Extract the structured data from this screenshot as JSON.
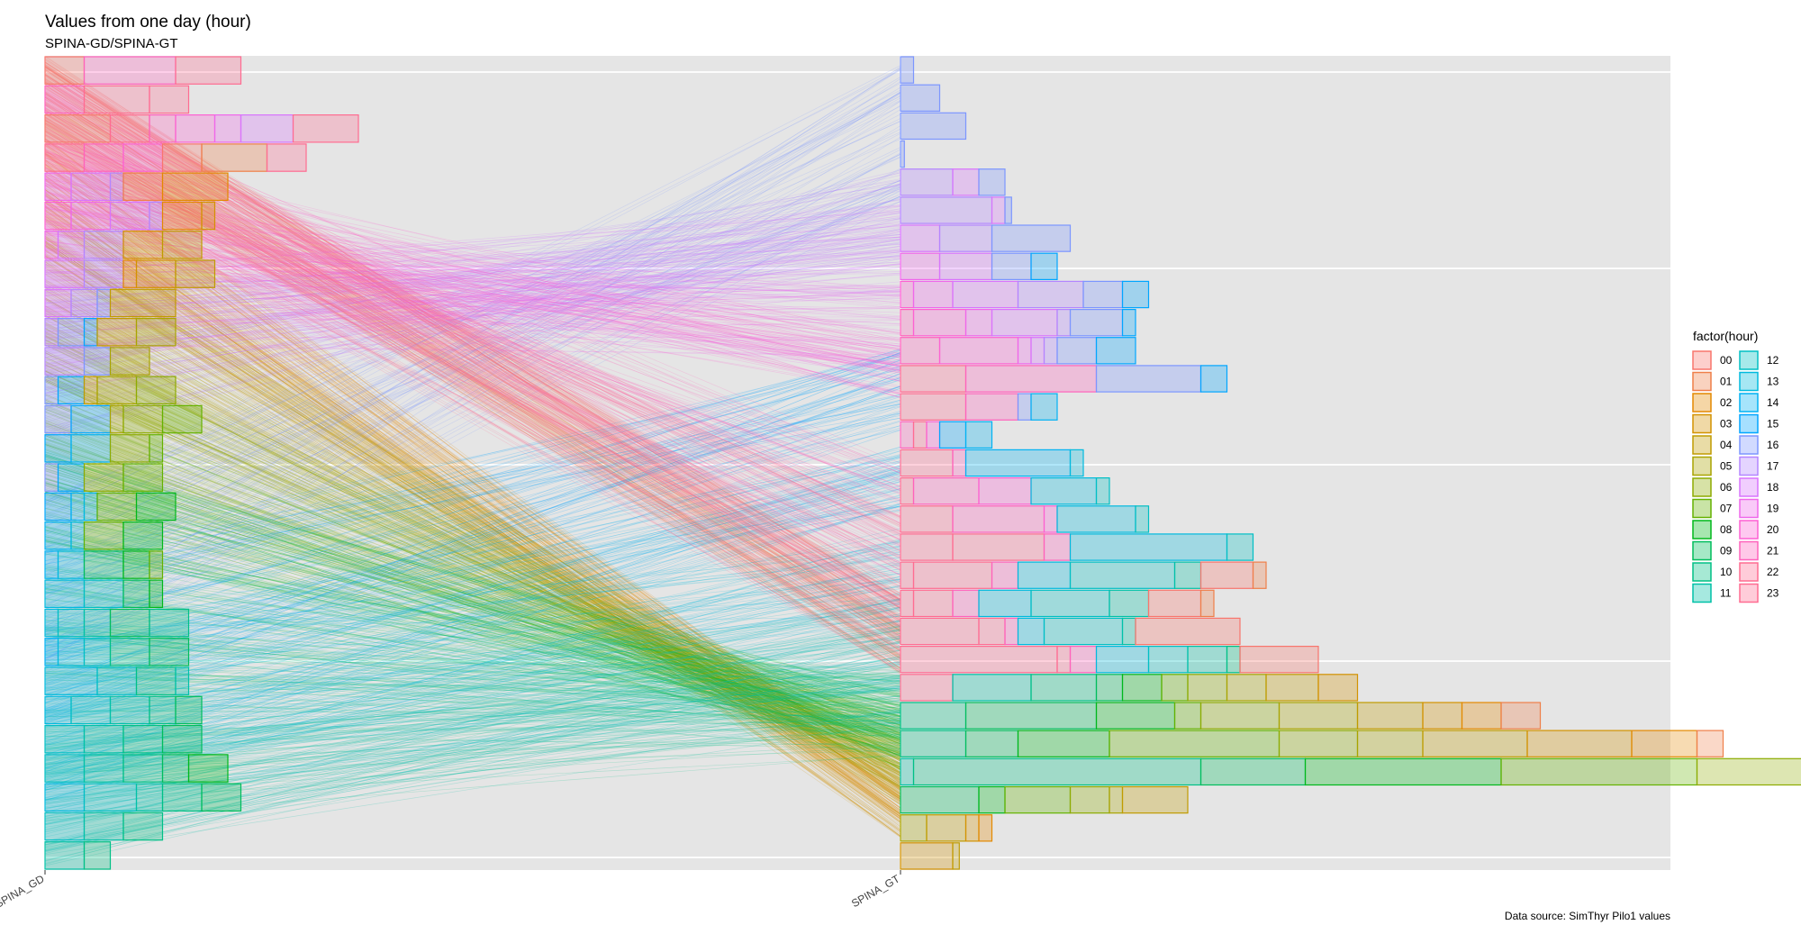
{
  "title": "Values from one day (hour)",
  "subtitle": "SPINA-GD/SPINA-GT",
  "caption": "Data source: SimThyr Pilo1 values",
  "chart_data": {
    "type": "parallel-coordinates-with-stacked-histograms",
    "x_categories": [
      "SPINA_GD",
      "SPINA_GT"
    ],
    "legend": {
      "title": "factor(hour)",
      "placement": "right",
      "entries": [
        "00",
        "01",
        "02",
        "03",
        "04",
        "05",
        "06",
        "07",
        "08",
        "09",
        "10",
        "11",
        "12",
        "13",
        "14",
        "15",
        "16",
        "17",
        "18",
        "19",
        "20",
        "21",
        "22",
        "23"
      ]
    },
    "palette": [
      "#F8766D",
      "#EF7F49",
      "#E38900",
      "#D39200",
      "#C09B00",
      "#A9A400",
      "#8DAB00",
      "#64B200",
      "#00B81B",
      "#00BD5C",
      "#00C085",
      "#00C1A7",
      "#00BFC4",
      "#00BADE",
      "#00B2F3",
      "#00A6FF",
      "#7C96FF",
      "#B385FF",
      "#D874FD",
      "#EF67EB",
      "#FD61D3",
      "#FF62BC",
      "#FF6C91",
      "#FF6C91"
    ],
    "grid": true,
    "panel_background": "#E5E5E5",
    "gd_histogram_rows": [
      [
        [
          0,
          3
        ],
        [
          21,
          7
        ],
        [
          22,
          5
        ]
      ],
      [
        [
          21,
          3
        ],
        [
          22,
          5
        ],
        [
          23,
          3
        ]
      ],
      [
        [
          0,
          5
        ],
        [
          22,
          3
        ],
        [
          21,
          2
        ],
        [
          20,
          3
        ],
        [
          19,
          2
        ],
        [
          18,
          4
        ],
        [
          23,
          5
        ]
      ],
      [
        [
          22,
          3
        ],
        [
          21,
          3
        ],
        [
          20,
          3
        ],
        [
          0,
          3
        ],
        [
          1,
          5
        ],
        [
          23,
          3
        ]
      ],
      [
        [
          19,
          2
        ],
        [
          18,
          3
        ],
        [
          17,
          1
        ],
        [
          1,
          3
        ],
        [
          2,
          5
        ]
      ],
      [
        [
          20,
          2
        ],
        [
          19,
          3
        ],
        [
          18,
          3
        ],
        [
          17,
          1
        ],
        [
          2,
          3
        ],
        [
          3,
          1
        ]
      ],
      [
        [
          19,
          1
        ],
        [
          18,
          2
        ],
        [
          17,
          3
        ],
        [
          3,
          3
        ],
        [
          4,
          3
        ]
      ],
      [
        [
          18,
          3
        ],
        [
          17,
          3
        ],
        [
          2,
          1
        ],
        [
          3,
          3
        ],
        [
          4,
          3
        ]
      ],
      [
        [
          18,
          2
        ],
        [
          17,
          2
        ],
        [
          16,
          1
        ],
        [
          4,
          5
        ]
      ],
      [
        [
          17,
          1
        ],
        [
          16,
          2
        ],
        [
          15,
          1
        ],
        [
          4,
          3
        ],
        [
          5,
          3
        ]
      ],
      [
        [
          17,
          3
        ],
        [
          16,
          2
        ],
        [
          5,
          3
        ]
      ],
      [
        [
          16,
          1
        ],
        [
          15,
          2
        ],
        [
          4,
          1
        ],
        [
          5,
          3
        ],
        [
          6,
          3
        ]
      ],
      [
        [
          16,
          2
        ],
        [
          15,
          3
        ],
        [
          5,
          1
        ],
        [
          6,
          3
        ],
        [
          7,
          3
        ]
      ],
      [
        [
          15,
          2
        ],
        [
          14,
          3
        ],
        [
          6,
          3
        ],
        [
          7,
          1
        ]
      ],
      [
        [
          16,
          1
        ],
        [
          15,
          2
        ],
        [
          6,
          3
        ],
        [
          7,
          3
        ]
      ],
      [
        [
          15,
          2
        ],
        [
          14,
          1
        ],
        [
          13,
          1
        ],
        [
          7,
          3
        ],
        [
          8,
          3
        ]
      ],
      [
        [
          14,
          2
        ],
        [
          13,
          1
        ],
        [
          7,
          3
        ],
        [
          8,
          3
        ]
      ],
      [
        [
          14,
          1
        ],
        [
          13,
          2
        ],
        [
          9,
          3
        ],
        [
          8,
          2
        ],
        [
          7,
          1
        ]
      ],
      [
        [
          13,
          3
        ],
        [
          12,
          3
        ],
        [
          9,
          2
        ],
        [
          8,
          1
        ]
      ],
      [
        [
          13,
          1
        ],
        [
          12,
          2
        ],
        [
          11,
          2
        ],
        [
          9,
          3
        ],
        [
          10,
          3
        ]
      ],
      [
        [
          14,
          1
        ],
        [
          13,
          2
        ],
        [
          12,
          2
        ],
        [
          10,
          3
        ],
        [
          9,
          3
        ]
      ],
      [
        [
          13,
          4
        ],
        [
          12,
          3
        ],
        [
          10,
          3
        ],
        [
          11,
          1
        ]
      ],
      [
        [
          13,
          2
        ],
        [
          12,
          3
        ],
        [
          11,
          3
        ],
        [
          10,
          2
        ],
        [
          9,
          2
        ]
      ],
      [
        [
          12,
          3
        ],
        [
          11,
          3
        ],
        [
          10,
          3
        ],
        [
          9,
          3
        ]
      ],
      [
        [
          12,
          3
        ],
        [
          11,
          3
        ],
        [
          10,
          3
        ],
        [
          9,
          2
        ],
        [
          8,
          3
        ]
      ],
      [
        [
          13,
          3
        ],
        [
          12,
          4
        ],
        [
          11,
          2
        ],
        [
          10,
          3
        ],
        [
          9,
          3
        ]
      ],
      [
        [
          12,
          3
        ],
        [
          11,
          3
        ],
        [
          10,
          3
        ]
      ],
      [
        [
          11,
          3
        ],
        [
          10,
          2
        ]
      ]
    ],
    "gt_histogram_rows": [
      [
        [
          16,
          1
        ]
      ],
      [
        [
          16,
          3
        ]
      ],
      [
        [
          16,
          5
        ]
      ],
      [
        [
          16,
          0.3
        ]
      ],
      [
        [
          17,
          4
        ],
        [
          18,
          2
        ],
        [
          16,
          2
        ]
      ],
      [
        [
          17,
          7
        ],
        [
          18,
          1
        ],
        [
          16,
          0.5
        ]
      ],
      [
        [
          18,
          3
        ],
        [
          17,
          4
        ],
        [
          16,
          6
        ]
      ],
      [
        [
          19,
          3
        ],
        [
          18,
          4
        ],
        [
          16,
          3
        ],
        [
          15,
          2
        ]
      ],
      [
        [
          20,
          1
        ],
        [
          19,
          3
        ],
        [
          18,
          5
        ],
        [
          17,
          5
        ],
        [
          16,
          3
        ],
        [
          15,
          2
        ]
      ],
      [
        [
          21,
          1
        ],
        [
          20,
          4
        ],
        [
          19,
          2
        ],
        [
          18,
          5
        ],
        [
          17,
          1
        ],
        [
          16,
          4
        ],
        [
          15,
          1
        ]
      ],
      [
        [
          21,
          3
        ],
        [
          20,
          6
        ],
        [
          19,
          1
        ],
        [
          18,
          1
        ],
        [
          17,
          1
        ],
        [
          16,
          3
        ],
        [
          15,
          3
        ]
      ],
      [
        [
          22,
          5
        ],
        [
          21,
          10
        ],
        [
          16,
          8
        ],
        [
          15,
          2
        ]
      ],
      [
        [
          22,
          5
        ],
        [
          21,
          4
        ],
        [
          16,
          1
        ],
        [
          14,
          2
        ]
      ],
      [
        [
          21,
          1
        ],
        [
          22,
          1
        ],
        [
          20,
          1
        ],
        [
          15,
          2
        ],
        [
          14,
          2
        ]
      ],
      [
        [
          22,
          4
        ],
        [
          21,
          1
        ],
        [
          14,
          8
        ],
        [
          13,
          1
        ]
      ],
      [
        [
          22,
          1
        ],
        [
          21,
          5
        ],
        [
          20,
          4
        ],
        [
          13,
          5
        ],
        [
          12,
          1
        ]
      ],
      [
        [
          22,
          4
        ],
        [
          21,
          7
        ],
        [
          20,
          1
        ],
        [
          13,
          6
        ],
        [
          12,
          1
        ]
      ],
      [
        [
          23,
          4
        ],
        [
          22,
          7
        ],
        [
          21,
          2
        ],
        [
          13,
          12
        ],
        [
          12,
          2
        ]
      ],
      [
        [
          23,
          1
        ],
        [
          22,
          6
        ],
        [
          21,
          2
        ],
        [
          13,
          4
        ],
        [
          12,
          8
        ],
        [
          11,
          2
        ],
        [
          0,
          4
        ],
        [
          1,
          1
        ]
      ],
      [
        [
          23,
          1
        ],
        [
          22,
          3
        ],
        [
          21,
          2
        ],
        [
          13,
          4
        ],
        [
          12,
          6
        ],
        [
          11,
          3
        ],
        [
          0,
          4
        ],
        [
          1,
          1
        ]
      ],
      [
        [
          23,
          6
        ],
        [
          22,
          2
        ],
        [
          21,
          1
        ],
        [
          13,
          2
        ],
        [
          12,
          6
        ],
        [
          11,
          1
        ],
        [
          0,
          8
        ]
      ],
      [
        [
          23,
          12
        ],
        [
          22,
          1
        ],
        [
          21,
          2
        ],
        [
          13,
          4
        ],
        [
          12,
          3
        ],
        [
          11,
          3
        ],
        [
          10,
          1
        ],
        [
          0,
          6
        ]
      ],
      [
        [
          23,
          4
        ],
        [
          11,
          6
        ],
        [
          10,
          5
        ],
        [
          9,
          2
        ],
        [
          8,
          3
        ],
        [
          7,
          2
        ],
        [
          6,
          3
        ],
        [
          5,
          3
        ],
        [
          4,
          4
        ],
        [
          3,
          3
        ]
      ],
      [
        [
          10,
          5
        ],
        [
          9,
          10
        ],
        [
          8,
          6
        ],
        [
          7,
          2
        ],
        [
          6,
          6
        ],
        [
          5,
          6
        ],
        [
          4,
          5
        ],
        [
          3,
          3
        ],
        [
          2,
          3
        ],
        [
          1,
          3
        ]
      ],
      [
        [
          10,
          5
        ],
        [
          9,
          4
        ],
        [
          8,
          7
        ],
        [
          7,
          13
        ],
        [
          6,
          6
        ],
        [
          5,
          5
        ],
        [
          4,
          8
        ],
        [
          3,
          8
        ],
        [
          2,
          5
        ],
        [
          1,
          2
        ]
      ],
      [
        [
          11,
          1
        ],
        [
          10,
          22
        ],
        [
          9,
          8
        ],
        [
          8,
          15
        ],
        [
          7,
          15
        ],
        [
          6,
          15
        ],
        [
          5,
          8
        ],
        [
          4,
          3
        ]
      ],
      [
        [
          9,
          6
        ],
        [
          8,
          2
        ],
        [
          7,
          5
        ],
        [
          6,
          3
        ],
        [
          5,
          1
        ],
        [
          4,
          5
        ]
      ],
      [
        [
          5,
          2
        ],
        [
          4,
          3
        ],
        [
          3,
          1
        ],
        [
          2,
          1
        ]
      ],
      [
        [
          3,
          4
        ],
        [
          4,
          0.5
        ]
      ]
    ],
    "line_bands": [
      {
        "hour": 0,
        "gd": [
          0.96,
          1.0
        ],
        "gt": [
          0.28,
          0.34
        ]
      },
      {
        "hour": 1,
        "gd": [
          0.9,
          0.97
        ],
        "gt": [
          0.24,
          0.3
        ]
      },
      {
        "hour": 2,
        "gd": [
          0.8,
          0.9
        ],
        "gt": [
          0.06,
          0.12
        ]
      },
      {
        "hour": 3,
        "gd": [
          0.74,
          0.84
        ],
        "gt": [
          0.04,
          0.1
        ]
      },
      {
        "hour": 4,
        "gd": [
          0.66,
          0.78
        ],
        "gt": [
          0.08,
          0.14
        ]
      },
      {
        "hour": 5,
        "gd": [
          0.6,
          0.72
        ],
        "gt": [
          0.1,
          0.16
        ]
      },
      {
        "hour": 6,
        "gd": [
          0.52,
          0.66
        ],
        "gt": [
          0.12,
          0.18
        ]
      },
      {
        "hour": 7,
        "gd": [
          0.44,
          0.58
        ],
        "gt": [
          0.12,
          0.2
        ]
      },
      {
        "hour": 8,
        "gd": [
          0.4,
          0.52
        ],
        "gt": [
          0.14,
          0.22
        ]
      },
      {
        "hour": 9,
        "gd": [
          0.22,
          0.4
        ],
        "gt": [
          0.16,
          0.24
        ]
      },
      {
        "hour": 10,
        "gd": [
          0.06,
          0.3
        ],
        "gt": [
          0.14,
          0.26
        ]
      },
      {
        "hour": 11,
        "gd": [
          0.0,
          0.18
        ],
        "gt": [
          0.18,
          0.3
        ]
      },
      {
        "hour": 12,
        "gd": [
          0.02,
          0.2
        ],
        "gt": [
          0.22,
          0.34
        ]
      },
      {
        "hour": 13,
        "gd": [
          0.08,
          0.3
        ],
        "gt": [
          0.3,
          0.42
        ]
      },
      {
        "hour": 14,
        "gd": [
          0.1,
          0.32
        ],
        "gt": [
          0.44,
          0.52
        ]
      },
      {
        "hour": 15,
        "gd": [
          0.18,
          0.4
        ],
        "gt": [
          0.54,
          0.64
        ]
      },
      {
        "hour": 16,
        "gd": [
          0.24,
          0.46
        ],
        "gt": [
          0.82,
          0.99
        ]
      },
      {
        "hour": 17,
        "gd": [
          0.52,
          0.7
        ],
        "gt": [
          0.74,
          0.86
        ]
      },
      {
        "hour": 18,
        "gd": [
          0.58,
          0.74
        ],
        "gt": [
          0.7,
          0.82
        ]
      },
      {
        "hour": 19,
        "gd": [
          0.64,
          0.82
        ],
        "gt": [
          0.6,
          0.72
        ]
      },
      {
        "hour": 20,
        "gd": [
          0.76,
          0.9
        ],
        "gt": [
          0.58,
          0.66
        ]
      },
      {
        "hour": 21,
        "gd": [
          0.82,
          0.96
        ],
        "gt": [
          0.36,
          0.5
        ]
      },
      {
        "hour": 22,
        "gd": [
          0.86,
          0.98
        ],
        "gt": [
          0.3,
          0.44
        ]
      },
      {
        "hour": 23,
        "gd": [
          0.84,
          0.96
        ],
        "gt": [
          0.24,
          0.34
        ]
      }
    ]
  }
}
